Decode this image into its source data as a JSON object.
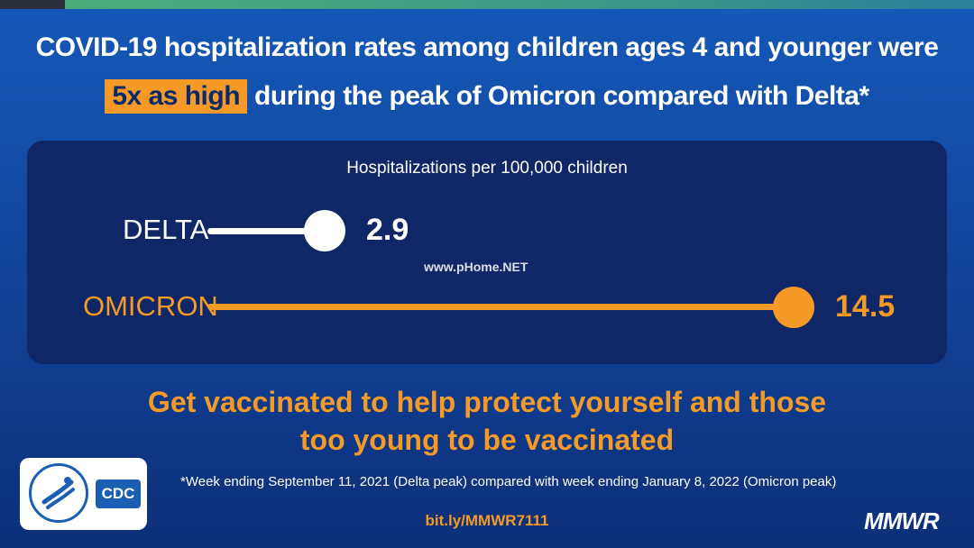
{
  "headline": {
    "line1": "COVID-19 hospitalization rates among children ages 4 and younger were",
    "highlight": "5x as high",
    "line2_rest": "during the peak of Omicron compared with Delta*"
  },
  "chart_data": {
    "type": "bar",
    "title": "Hospitalizations per 100,000 children",
    "categories": [
      "DELTA",
      "OMICRON"
    ],
    "values": [
      2.9,
      14.5
    ],
    "value_labels": [
      "2.9",
      "14.5"
    ],
    "colors": [
      "#ffffff",
      "#f59a27"
    ],
    "xlim": [
      0,
      14.5
    ],
    "grid": false
  },
  "watermark": "www.pHome.NET",
  "cta": {
    "line1": "Get vaccinated to help protect yourself and those",
    "line2": "too young to be vaccinated"
  },
  "logo": {
    "badge": "CDC"
  },
  "footnote": "*Week ending September 11, 2021 (Delta peak) compared with week ending January 8, 2022 (Omicron peak)",
  "link": "bit.ly/MMWR7111",
  "brand": "MMWR",
  "colors": {
    "accent": "#f59a27",
    "panel": "#0f2766",
    "background": "#1558b8"
  }
}
